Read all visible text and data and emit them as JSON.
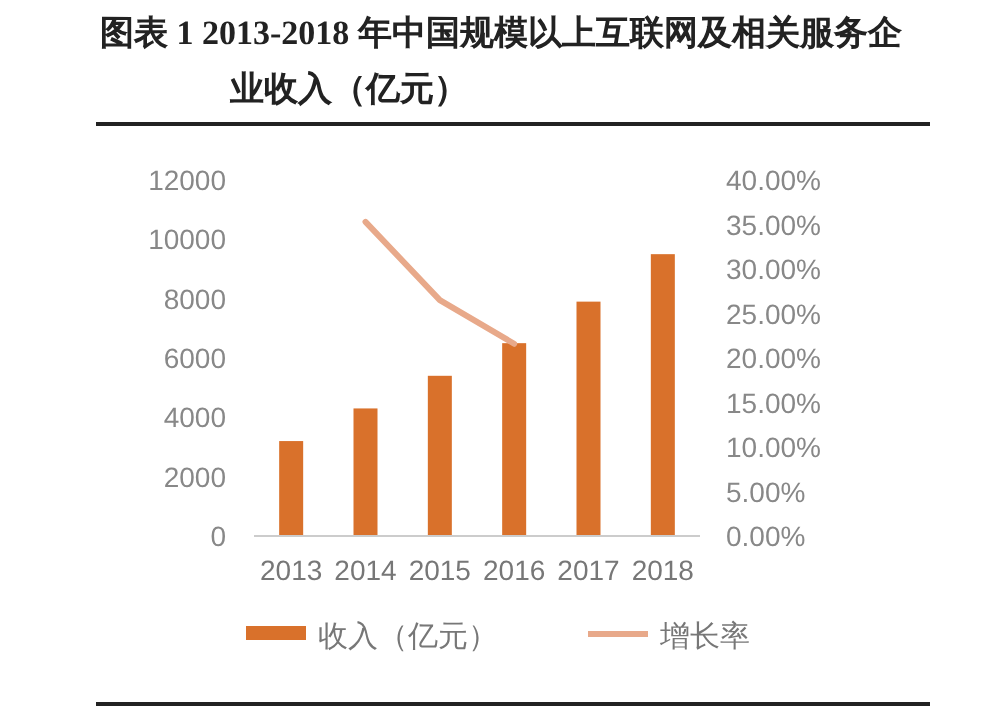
{
  "chart_data": {
    "type": "bar",
    "title": "图表 1 2013-2018 年中国规模以上互联网及相关服务企业收入（亿元）",
    "categories": [
      "2013",
      "2014",
      "2015",
      "2016",
      "2017",
      "2018"
    ],
    "series": [
      {
        "name": "收入（亿元）",
        "color": "#d9712b",
        "values": [
          3200,
          4300,
          5400,
          6500,
          7900,
          9500
        ]
      },
      {
        "name": "增长率",
        "type": "line",
        "axis": "y2",
        "color": "#e8a98a",
        "values": [
          null,
          35.3,
          26.5,
          21.6,
          null,
          null
        ]
      }
    ],
    "ylim": [
      0,
      12000
    ],
    "yticks": [
      0,
      2000,
      4000,
      6000,
      8000,
      10000,
      12000
    ],
    "y2lim": [
      0,
      40
    ],
    "y2ticks": [
      {
        "value": 0,
        "label": "0.00%"
      },
      {
        "value": 5,
        "label": "5.00%"
      },
      {
        "value": 10,
        "label": "10.00%"
      },
      {
        "value": 15,
        "label": "15.00%"
      },
      {
        "value": 20,
        "label": "20.00%"
      },
      {
        "value": 25,
        "label": "25.00%"
      },
      {
        "value": 30,
        "label": "30.00%"
      },
      {
        "value": 35,
        "label": "35.00%"
      },
      {
        "value": 40,
        "label": "40.00%"
      }
    ],
    "grid": false,
    "legend": "bottom"
  }
}
